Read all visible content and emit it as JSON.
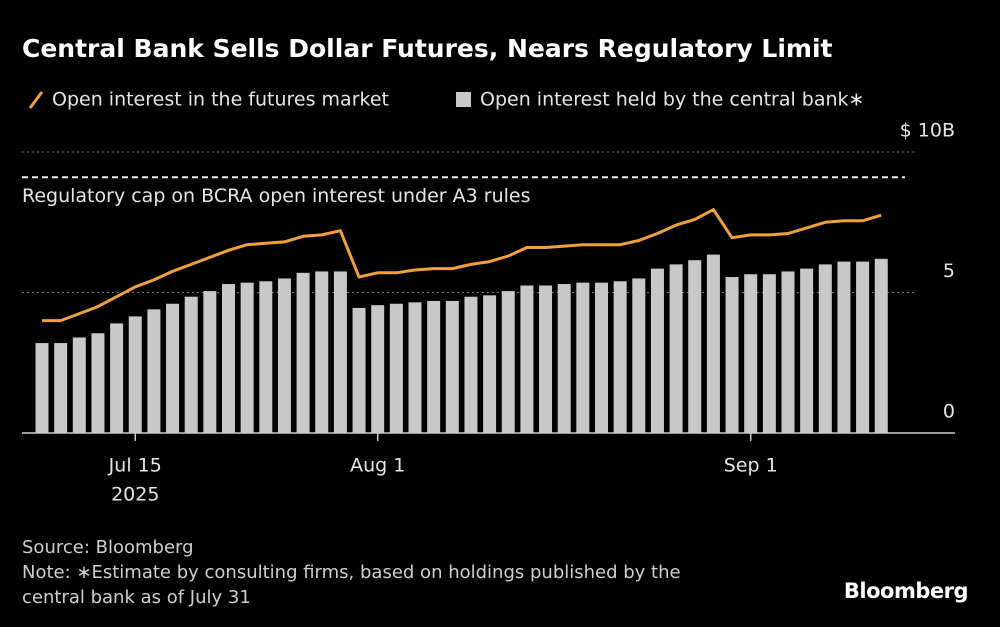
{
  "chart_data": {
    "type": "bar",
    "title": "Central Bank Sells Dollar Futures, Nears Regulatory Limit",
    "categories": [
      null,
      null,
      null,
      null,
      null,
      "Jul 15",
      null,
      null,
      null,
      null,
      null,
      null,
      null,
      null,
      null,
      null,
      null,
      null,
      "Aug 1",
      null,
      null,
      null,
      null,
      null,
      null,
      null,
      null,
      null,
      null,
      null,
      null,
      null,
      null,
      null,
      null,
      null,
      null,
      null,
      "Sep 1",
      null,
      null,
      null,
      null,
      null,
      null,
      null
    ],
    "x_sublabel": {
      "index": 5,
      "label": "2025"
    },
    "series": [
      {
        "name": "Open interest in the futures market",
        "type": "line",
        "color": "#f0a03c",
        "values": [
          4.0,
          4.0,
          4.25,
          4.5,
          4.85,
          5.2,
          5.45,
          5.75,
          6.0,
          6.25,
          6.5,
          6.7,
          6.75,
          6.8,
          7.0,
          7.05,
          7.2,
          5.55,
          5.7,
          5.7,
          5.8,
          5.85,
          5.85,
          6.0,
          6.1,
          6.3,
          6.6,
          6.6,
          6.65,
          6.7,
          6.7,
          6.7,
          6.85,
          7.1,
          7.4,
          7.6,
          7.95,
          6.95,
          7.05,
          7.05,
          7.1,
          7.3,
          7.5,
          7.55,
          7.55,
          7.75
        ]
      },
      {
        "name": "Open interest held by the central bank∗",
        "type": "bar",
        "color": "#c8c8c8",
        "values": [
          3.2,
          3.2,
          3.4,
          3.55,
          3.9,
          4.15,
          4.4,
          4.6,
          4.85,
          5.05,
          5.3,
          5.35,
          5.4,
          5.5,
          5.7,
          5.75,
          5.75,
          4.45,
          4.55,
          4.6,
          4.65,
          4.7,
          4.7,
          4.85,
          4.9,
          5.05,
          5.25,
          5.25,
          5.3,
          5.35,
          5.35,
          5.4,
          5.5,
          5.85,
          6.0,
          6.15,
          6.35,
          5.55,
          5.65,
          5.65,
          5.75,
          5.85,
          6.0,
          6.1,
          6.1,
          6.2
        ]
      }
    ],
    "ylim": [
      0,
      10
    ],
    "yticks": [
      0,
      5,
      {
        "value": 10,
        "label": "$ 10B"
      }
    ],
    "grid": true,
    "annotation": {
      "value": 9.1,
      "label": "Regulatory cap on BCRA open interest under A3 rules"
    },
    "source": "Source: Bloomberg",
    "note_lines": [
      "Note: ∗Estimate by consulting firms, based on holdings published by the",
      "central bank as of July 31"
    ],
    "brand": "Bloomberg"
  }
}
